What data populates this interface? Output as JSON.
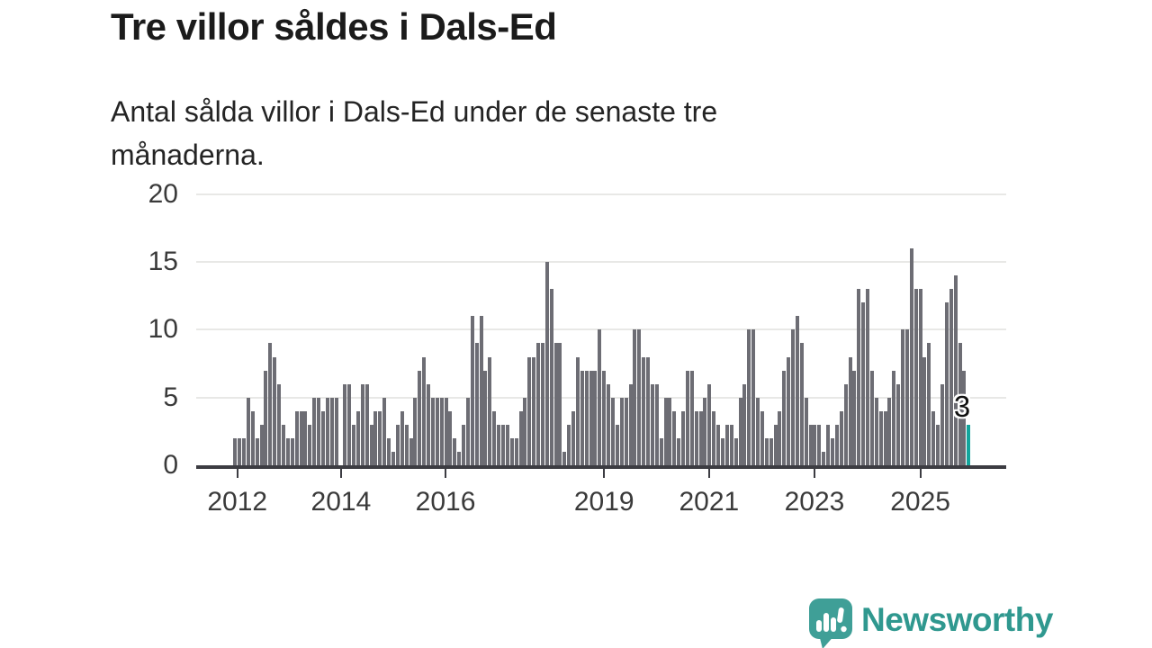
{
  "header": {
    "title": "Tre villor såldes i Dals-Ed",
    "subtitle": "Antal sålda villor i Dals-Ed under de senaste tre månaderna."
  },
  "chart_data": {
    "type": "bar",
    "title": "Tre villor såldes i Dals-Ed",
    "subtitle": "Antal sålda villor i Dals-Ed under de senaste tre månaderna.",
    "xlabel": "",
    "ylabel": "",
    "ylim": [
      0,
      20
    ],
    "grid": true,
    "y_ticks": [
      "0",
      "5",
      "10",
      "15",
      "20"
    ],
    "x_ticks": [
      {
        "label": "2012",
        "bar_index": 0.5
      },
      {
        "label": "2014",
        "bar_index": 24.1
      },
      {
        "label": "2016",
        "bar_index": 47.9
      },
      {
        "label": "2019",
        "bar_index": 84.0
      },
      {
        "label": "2021",
        "bar_index": 107.9
      },
      {
        "label": "2023",
        "bar_index": 131.9
      },
      {
        "label": "2025",
        "bar_index": 156.0
      }
    ],
    "values": [
      2,
      2,
      2,
      5,
      4,
      2,
      3,
      7,
      9,
      8,
      6,
      3,
      2,
      2,
      4,
      4,
      4,
      3,
      5,
      5,
      4,
      5,
      5,
      5,
      0,
      6,
      6,
      3,
      4,
      6,
      6,
      3,
      4,
      4,
      5,
      2,
      1,
      3,
      4,
      3,
      2,
      5,
      7,
      8,
      6,
      5,
      5,
      5,
      5,
      4,
      2,
      1,
      3,
      5,
      11,
      9,
      11,
      7,
      8,
      4,
      3,
      3,
      3,
      2,
      2,
      4,
      5,
      8,
      8,
      9,
      9,
      15,
      13,
      9,
      9,
      1,
      3,
      4,
      8,
      7,
      7,
      7,
      7,
      10,
      7,
      6,
      5,
      3,
      5,
      5,
      6,
      10,
      10,
      8,
      8,
      6,
      6,
      2,
      5,
      5,
      4,
      2,
      4,
      7,
      7,
      4,
      4,
      5,
      6,
      4,
      3,
      2,
      3,
      3,
      2,
      5,
      6,
      10,
      10,
      5,
      4,
      2,
      2,
      3,
      4,
      7,
      8,
      10,
      11,
      9,
      5,
      3,
      3,
      3,
      1,
      3,
      2,
      3,
      4,
      6,
      8,
      7,
      13,
      12,
      13,
      7,
      5,
      4,
      4,
      5,
      7,
      6,
      10,
      10,
      16,
      13,
      13,
      8,
      9,
      4,
      3,
      6,
      12,
      13,
      14,
      9,
      7,
      3
    ],
    "highlight": {
      "index": 167,
      "value": 3,
      "label": "3"
    },
    "colors": {
      "bar": "#6d6d74",
      "highlight_bar": "#13a59c",
      "axis": "#3c3c42",
      "gridline": "#e8e8e6",
      "tick_label": "#3a3a3a"
    }
  },
  "footer": {
    "brand": "Newsworthy",
    "brand_color": "#2f988f",
    "logo_color": "#3f9f97",
    "logo_icon": "bar-chart-speech-bubble"
  }
}
